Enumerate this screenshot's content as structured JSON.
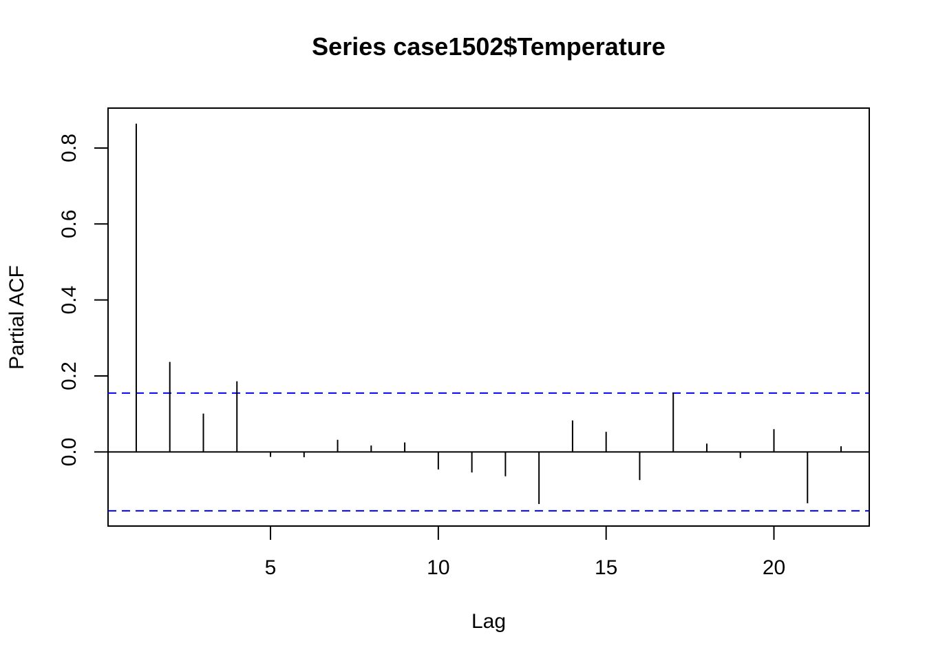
{
  "chart_data": {
    "type": "bar",
    "title": "Series  case1502$Temperature",
    "xlabel": "Lag",
    "ylabel": "Partial ACF",
    "xlim": [
      0.16,
      22.84
    ],
    "ylim": [
      -0.195,
      0.905
    ],
    "x_ticks": [
      5,
      10,
      15,
      20
    ],
    "y_ticks": [
      0.0,
      0.2,
      0.4,
      0.6,
      0.8
    ],
    "y_tick_labels": [
      "0.0",
      "0.2",
      "0.4",
      "0.6",
      "0.8"
    ],
    "ci_bound": 0.155,
    "ci_color": "#0000ff",
    "line_color": "#000000",
    "grid": false,
    "legend": "none",
    "lags": [
      1,
      2,
      3,
      4,
      5,
      6,
      7,
      8,
      9,
      10,
      11,
      12,
      13,
      14,
      15,
      16,
      17,
      18,
      19,
      20,
      21,
      22
    ],
    "values": [
      0.864,
      0.237,
      0.101,
      0.186,
      -0.013,
      -0.014,
      0.032,
      0.017,
      0.025,
      -0.046,
      -0.054,
      -0.064,
      -0.137,
      0.083,
      0.053,
      -0.074,
      0.156,
      0.022,
      -0.016,
      0.06,
      -0.135,
      0.015
    ]
  }
}
